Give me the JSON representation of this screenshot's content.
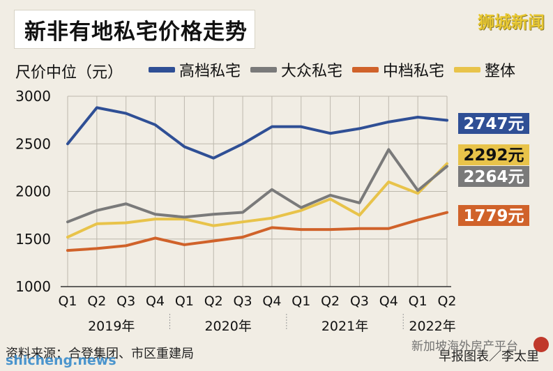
{
  "title": "新非有地私宅价格走势",
  "brand": "狮城新闻",
  "colors": {
    "high": "#2f4f95",
    "mass": "#7a7a7a",
    "mid": "#d0622a",
    "overall": "#e8c34a",
    "grid": "#bdb8ad",
    "axis": "#333333"
  },
  "chart_data": {
    "type": "line",
    "ylabel": "尺价中位（元）",
    "ylim": [
      1000,
      3000
    ],
    "yticks": [
      "3000",
      "2500",
      "2000",
      "1500",
      "1000"
    ],
    "categories": [
      "Q1",
      "Q2",
      "Q3",
      "Q4",
      "Q1",
      "Q2",
      "Q3",
      "Q4",
      "Q1",
      "Q2",
      "Q3",
      "Q4",
      "Q1",
      "Q2"
    ],
    "years": [
      "2019年",
      "2020年",
      "2021年",
      "2022年"
    ],
    "series": [
      {
        "name": "高档私宅",
        "key": "high",
        "values": [
          2500,
          2880,
          2820,
          2700,
          2470,
          2350,
          2500,
          2680,
          2680,
          2610,
          2660,
          2730,
          2780,
          2747
        ],
        "end_label": "2747元"
      },
      {
        "name": "大众私宅",
        "key": "mass",
        "values": [
          1680,
          1800,
          1870,
          1760,
          1730,
          1760,
          1780,
          2020,
          1830,
          1960,
          1880,
          2440,
          2010,
          2264
        ],
        "end_label": "2264元"
      },
      {
        "name": "中档私宅",
        "key": "mid",
        "values": [
          1380,
          1400,
          1430,
          1510,
          1440,
          1480,
          1520,
          1620,
          1600,
          1600,
          1610,
          1610,
          1700,
          1779
        ],
        "end_label": "1779元"
      },
      {
        "name": "整体",
        "key": "overall",
        "values": [
          1520,
          1660,
          1670,
          1710,
          1710,
          1640,
          1680,
          1720,
          1800,
          1920,
          1750,
          2100,
          1980,
          2292
        ],
        "end_label": "2292元"
      }
    ]
  },
  "footer": {
    "source": "资料来源：合登集团、市区重建局",
    "credit": "早报图表／李太里",
    "watermark_left": "shicheng.news",
    "watermark_right": "新加坡海外房产平台"
  }
}
